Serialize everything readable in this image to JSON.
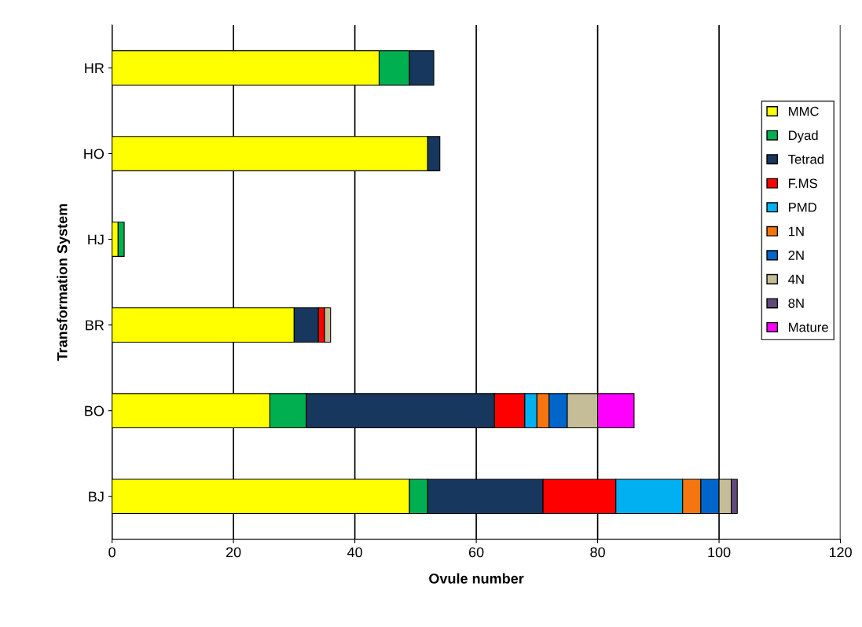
{
  "chart_data": {
    "type": "bar",
    "orientation": "horizontal",
    "stacked": true,
    "xlabel": "Ovule number",
    "ylabel": "Transformation System",
    "categories": [
      "HR",
      "HO",
      "HJ",
      "BR",
      "BO",
      "BJ"
    ],
    "series": [
      {
        "name": "MMC",
        "color": "#ffff00",
        "values": [
          44,
          52,
          1,
          30,
          26,
          49
        ]
      },
      {
        "name": "Dyad",
        "color": "#00b050",
        "values": [
          5,
          null,
          1,
          null,
          6,
          3
        ]
      },
      {
        "name": "Tetrad",
        "color": "#17375e",
        "values": [
          4,
          2,
          null,
          4,
          31,
          19
        ]
      },
      {
        "name": "F.MS",
        "color": "#ff0000",
        "values": [
          null,
          null,
          null,
          1,
          5,
          12
        ]
      },
      {
        "name": "PMD",
        "color": "#00b0f0",
        "values": [
          null,
          null,
          null,
          null,
          2,
          11
        ]
      },
      {
        "name": "1N",
        "color": "#f5760f",
        "values": [
          null,
          null,
          null,
          null,
          2,
          3
        ]
      },
      {
        "name": "2N",
        "color": "#0066cc",
        "values": [
          null,
          null,
          null,
          null,
          3,
          3
        ]
      },
      {
        "name": "4N",
        "color": "#c4bd97",
        "values": [
          null,
          null,
          null,
          1,
          5,
          2
        ]
      },
      {
        "name": "8N",
        "color": "#604a7b",
        "values": [
          null,
          null,
          null,
          null,
          null,
          1
        ]
      },
      {
        "name": "Mature",
        "color": "#ff00ff",
        "values": [
          null,
          null,
          null,
          null,
          6,
          null
        ]
      }
    ],
    "xlim": [
      0,
      120
    ],
    "xticks": [
      0,
      20,
      40,
      60,
      80,
      100,
      120
    ],
    "grid": "x",
    "legend": "right"
  }
}
